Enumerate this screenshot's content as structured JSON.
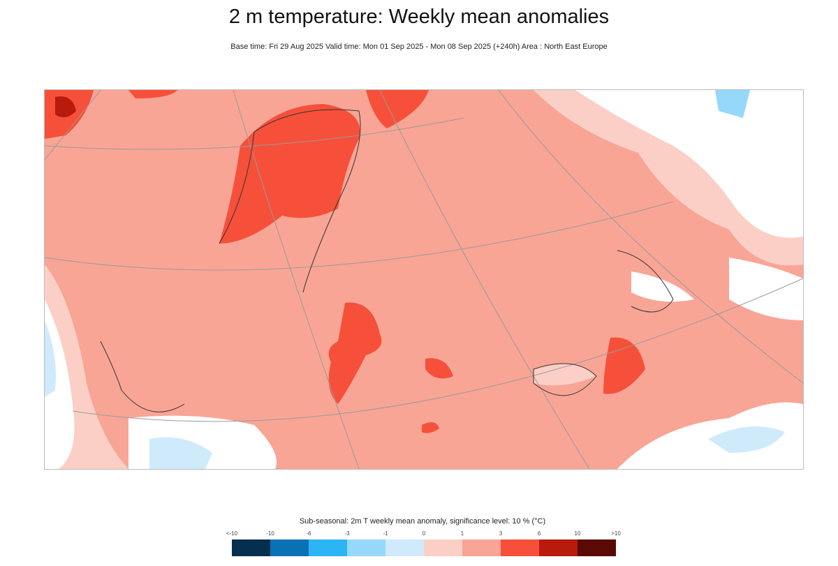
{
  "title": "2 m temperature: Weekly mean anomalies",
  "subtitle": "Base time: Fri 29 Aug 2025 Valid time: Mon 01 Sep 2025 - Mon 08 Sep 2025 (+240h) Area : North East Europe",
  "map": {
    "area": "North East Europe",
    "background_anomaly_color": "#f8a596"
  },
  "legend": {
    "title": "Sub-seasonal: 2m T weekly mean anomaly, significance level: 10 % (°C)",
    "labels": [
      "<-10",
      "-10",
      "-6",
      "-3",
      "-1",
      "0",
      "1",
      "3",
      "6",
      "10",
      ">10"
    ],
    "colors": [
      "#052f4e",
      "#0a72b4",
      "#2db4f5",
      "#96d8fa",
      "#cfeafb",
      "#fbcfc6",
      "#f8a596",
      "#f6503a",
      "#b81a0c",
      "#5a0904"
    ]
  }
}
